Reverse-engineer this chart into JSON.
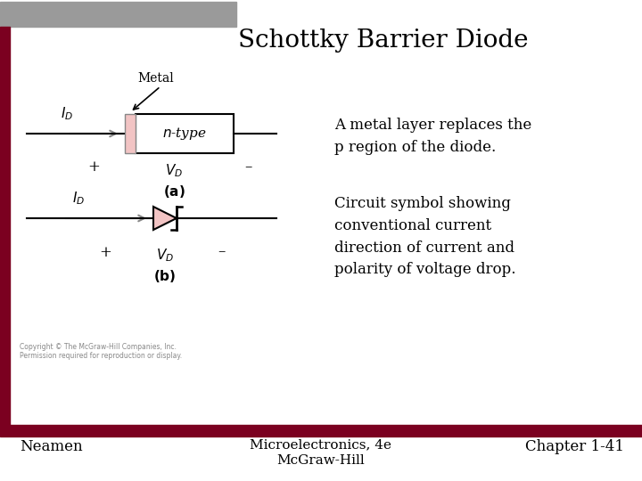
{
  "title": "Schottky Barrier Diode",
  "title_fontsize": 20,
  "text_desc1": "A metal layer replaces the\np region of the diode.",
  "text_desc2": "Circuit symbol showing\nconventional current\ndirection of current and\npolarity of voltage drop.",
  "footer_left": "Neamen",
  "footer_center": "Microelectronics, 4e\nMcGraw-Hill",
  "footer_right": "Chapter 1-41",
  "bg_color": "#ffffff",
  "dark_red": "#7B0020",
  "gray_bar": "#9a9a9a",
  "pink_metal": "#f2c4c4",
  "copyright_text": "Copyright © The McGraw-Hill Companies, Inc.\nPermission required for reproduction or display.",
  "gray_arrow": "#888888"
}
